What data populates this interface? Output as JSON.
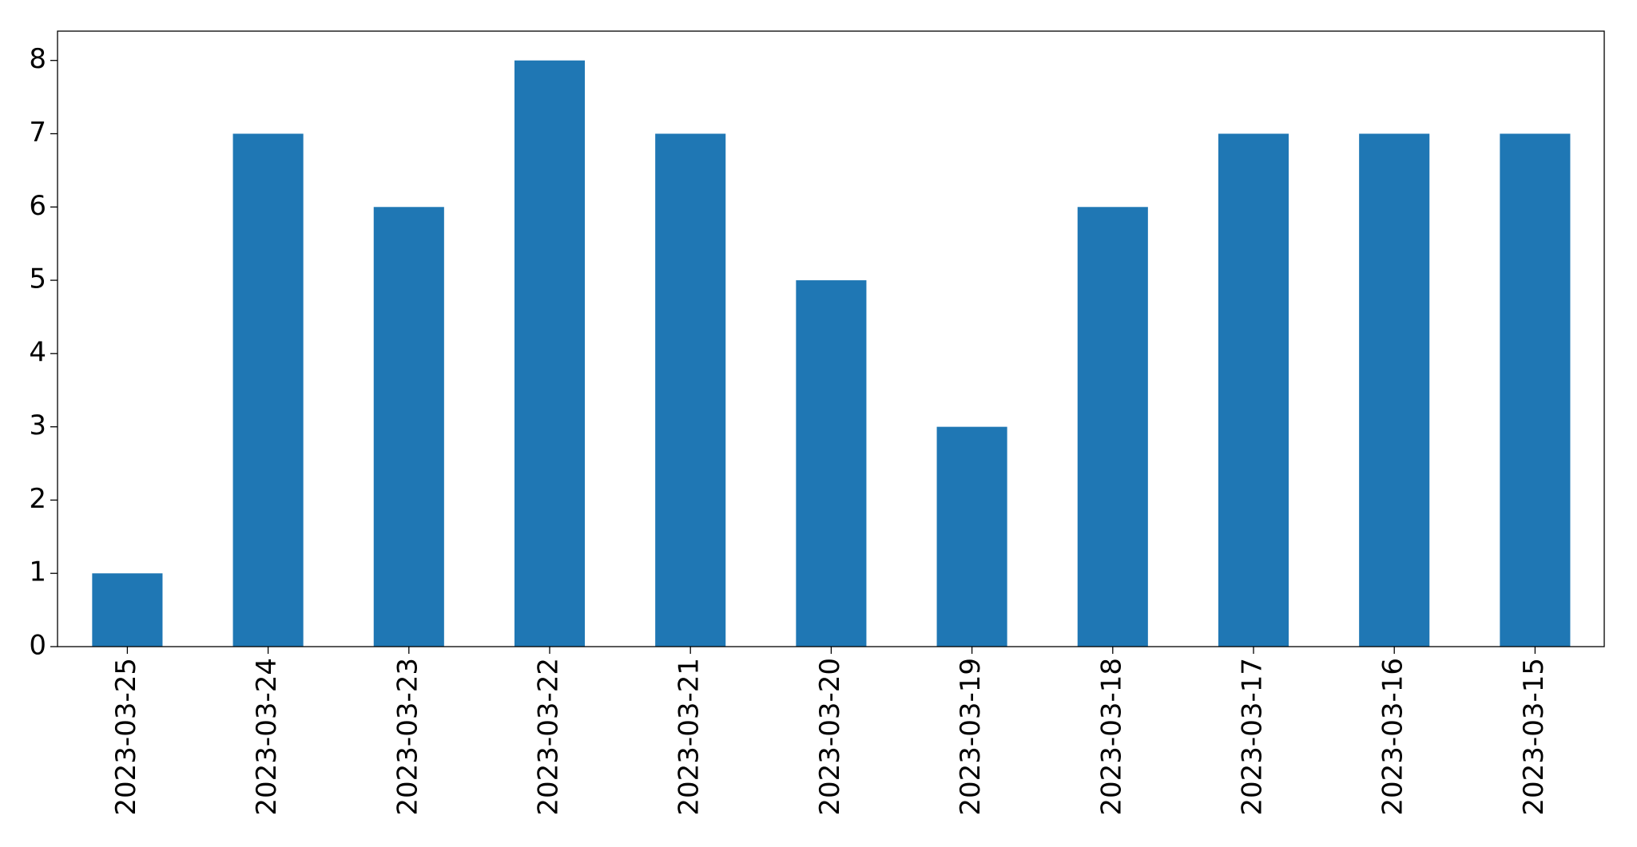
{
  "chart_data": {
    "type": "bar",
    "categories": [
      "2023-03-25",
      "2023-03-24",
      "2023-03-23",
      "2023-03-22",
      "2023-03-21",
      "2023-03-20",
      "2023-03-19",
      "2023-03-18",
      "2023-03-17",
      "2023-03-16",
      "2023-03-15"
    ],
    "values": [
      1,
      7,
      6,
      8,
      7,
      5,
      3,
      6,
      7,
      7,
      7
    ],
    "color": "#1f77b4",
    "ylim": [
      0,
      8.4
    ],
    "yticks": [
      0,
      1,
      2,
      3,
      4,
      5,
      6,
      7,
      8
    ],
    "grid": false
  }
}
